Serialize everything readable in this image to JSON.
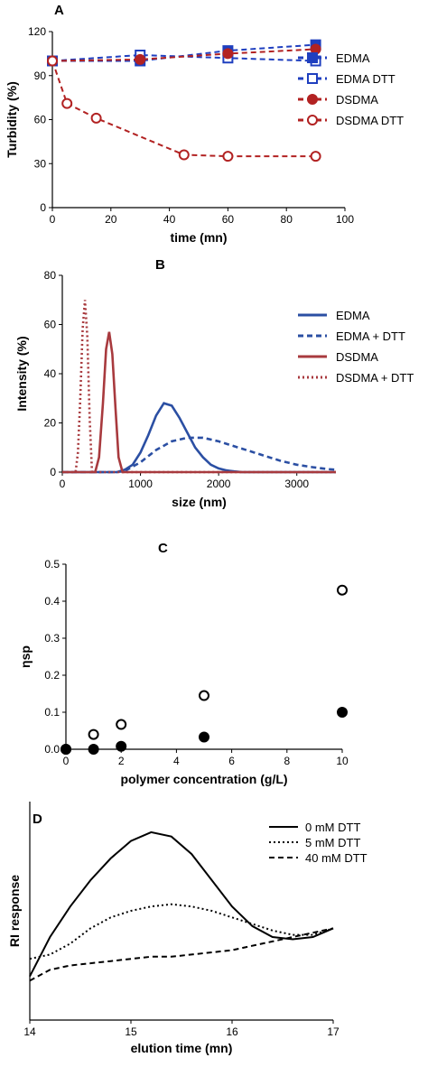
{
  "chart_data": [
    {
      "panel": "A",
      "type": "line",
      "xlabel": "time (mn)",
      "ylabel": "Turbidity (%)",
      "xlim": [
        0,
        100
      ],
      "ylim": [
        0,
        120
      ],
      "xticks": [
        0,
        20,
        40,
        60,
        80,
        100
      ],
      "yticks": [
        0,
        30,
        60,
        90,
        120
      ],
      "legend_position": "right",
      "series": [
        {
          "name": "EDMA",
          "color": "#1f3fbf",
          "marker": "square-filled",
          "line": "dashed",
          "x": [
            0,
            30,
            60,
            90
          ],
          "y": [
            100,
            100,
            107,
            111
          ]
        },
        {
          "name": "EDMA DTT",
          "color": "#1f3fbf",
          "marker": "square-open",
          "line": "dashed",
          "x": [
            0,
            30,
            60,
            90
          ],
          "y": [
            100,
            104,
            102,
            100
          ]
        },
        {
          "name": "DSDMA",
          "color": "#b22222",
          "marker": "circle-filled",
          "line": "dashed",
          "x": [
            0,
            30,
            60,
            90
          ],
          "y": [
            100,
            101,
            105,
            108
          ]
        },
        {
          "name": "DSDMA DTT",
          "color": "#b22222",
          "marker": "circle-open",
          "line": "dashed",
          "x": [
            0,
            5,
            15,
            45,
            60,
            90
          ],
          "y": [
            100,
            71,
            61,
            36,
            35,
            35
          ]
        }
      ]
    },
    {
      "panel": "B",
      "type": "line",
      "xlabel": "size (nm)",
      "ylabel": "Intensity (%)",
      "xlim": [
        0,
        3500
      ],
      "ylim": [
        0,
        80
      ],
      "xticks": [
        0,
        1000,
        2000,
        3000
      ],
      "yticks": [
        0,
        20,
        40,
        60,
        80
      ],
      "legend_position": "right",
      "series": [
        {
          "name": "EDMA",
          "color": "#2b4fa3",
          "line": "solid",
          "x": [
            0,
            600,
            700,
            800,
            900,
            1000,
            1100,
            1200,
            1300,
            1400,
            1500,
            1600,
            1700,
            1800,
            1900,
            2000,
            2100,
            2200,
            2300,
            2500,
            3500
          ],
          "y": [
            0,
            0,
            0,
            1,
            3,
            8,
            15,
            23,
            28,
            27,
            22,
            16,
            10,
            6,
            3,
            1.5,
            0.7,
            0.3,
            0,
            0,
            0
          ]
        },
        {
          "name": "EDMA + DTT",
          "color": "#2b4fa3",
          "line": "dashed",
          "x": [
            0,
            700,
            800,
            1000,
            1200,
            1400,
            1600,
            1800,
            2000,
            2200,
            2400,
            2600,
            2800,
            3000,
            3200,
            3400,
            3500
          ],
          "y": [
            0,
            0,
            0.5,
            4,
            9,
            12.5,
            14,
            14,
            12.5,
            10.5,
            8.5,
            6.5,
            4.5,
            3,
            2,
            1.2,
            1
          ]
        },
        {
          "name": "DSDMA",
          "color": "#a83a3e",
          "line": "solid",
          "x": [
            0,
            420,
            470,
            520,
            560,
            600,
            640,
            680,
            720,
            770,
            3500
          ],
          "y": [
            0,
            0,
            6,
            28,
            50,
            57,
            48,
            26,
            6,
            0,
            0
          ]
        },
        {
          "name": "DSDMA + DTT",
          "color": "#a83a3e",
          "line": "dotted",
          "x": [
            0,
            170,
            200,
            230,
            260,
            290,
            320,
            350,
            380,
            3500
          ],
          "y": [
            0,
            0,
            8,
            30,
            58,
            70,
            55,
            22,
            0,
            0
          ]
        }
      ]
    },
    {
      "panel": "C",
      "type": "scatter",
      "xlabel": "polymer concentration (g/L)",
      "ylabel": "ηsp",
      "xlim": [
        0,
        10
      ],
      "ylim": [
        0,
        0.5
      ],
      "xticks": [
        0,
        2,
        4,
        6,
        8,
        10
      ],
      "yticks": [
        0.0,
        0.1,
        0.2,
        0.3,
        0.4,
        0.5
      ],
      "ytick_labels": [
        "0.0",
        "0.1",
        "0.2",
        "0.3",
        "0.4",
        "0.5"
      ],
      "series": [
        {
          "marker": "circle-open",
          "x": [
            0,
            1,
            2,
            5,
            10
          ],
          "y": [
            0.0,
            0.04,
            0.067,
            0.145,
            0.43
          ]
        },
        {
          "marker": "circle-filled",
          "x": [
            0,
            1,
            2,
            5,
            10
          ],
          "y": [
            0.0,
            0.0,
            0.008,
            0.033,
            0.1
          ]
        }
      ]
    },
    {
      "panel": "D",
      "type": "line",
      "xlabel": "elution time (mn)",
      "ylabel": "RI response",
      "xlim": [
        14,
        17
      ],
      "ylim": [
        0,
        1
      ],
      "xticks": [
        14,
        15,
        16,
        17
      ],
      "legend_position": "top-right",
      "series": [
        {
          "name": "0 mM DTT",
          "color": "#000000",
          "line": "solid",
          "x": [
            14,
            14.2,
            14.4,
            14.6,
            14.8,
            15.0,
            15.2,
            15.4,
            15.6,
            15.8,
            16.0,
            16.2,
            16.4,
            16.6,
            16.8,
            17.0
          ],
          "y": [
            0.2,
            0.38,
            0.52,
            0.64,
            0.74,
            0.82,
            0.86,
            0.84,
            0.76,
            0.64,
            0.52,
            0.43,
            0.38,
            0.37,
            0.38,
            0.42
          ]
        },
        {
          "name": "5 mM DTT",
          "color": "#000000",
          "line": "dotted",
          "x": [
            14,
            14.2,
            14.4,
            14.6,
            14.8,
            15.0,
            15.2,
            15.4,
            15.6,
            15.8,
            16.0,
            16.2,
            16.4,
            16.6,
            16.8,
            17.0
          ],
          "y": [
            0.28,
            0.3,
            0.35,
            0.42,
            0.47,
            0.5,
            0.52,
            0.53,
            0.52,
            0.5,
            0.47,
            0.44,
            0.41,
            0.39,
            0.39,
            0.42
          ]
        },
        {
          "name": "40 mM DTT",
          "color": "#000000",
          "line": "dashed",
          "x": [
            14,
            14.2,
            14.4,
            14.6,
            14.8,
            15.0,
            15.2,
            15.4,
            15.6,
            15.8,
            16.0,
            16.2,
            16.4,
            16.6,
            16.8,
            17.0
          ],
          "y": [
            0.18,
            0.23,
            0.25,
            0.26,
            0.27,
            0.28,
            0.29,
            0.29,
            0.3,
            0.31,
            0.32,
            0.34,
            0.36,
            0.38,
            0.4,
            0.42
          ]
        }
      ]
    }
  ]
}
